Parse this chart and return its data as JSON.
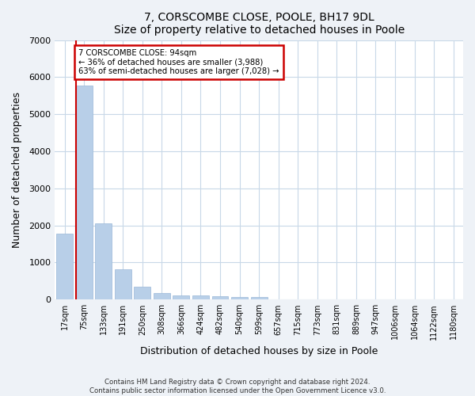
{
  "title": "7, CORSCOMBE CLOSE, POOLE, BH17 9DL",
  "subtitle": "Size of property relative to detached houses in Poole",
  "xlabel": "Distribution of detached houses by size in Poole",
  "ylabel": "Number of detached properties",
  "categories": [
    "17sqm",
    "75sqm",
    "133sqm",
    "191sqm",
    "250sqm",
    "308sqm",
    "366sqm",
    "424sqm",
    "482sqm",
    "540sqm",
    "599sqm",
    "657sqm",
    "715sqm",
    "773sqm",
    "831sqm",
    "889sqm",
    "947sqm",
    "1006sqm",
    "1064sqm",
    "1122sqm",
    "1180sqm"
  ],
  "bar_heights": [
    1780,
    5780,
    2060,
    820,
    340,
    185,
    120,
    110,
    100,
    80,
    70,
    0,
    0,
    0,
    0,
    0,
    0,
    0,
    0,
    0,
    0
  ],
  "bar_color": "#b8cfe8",
  "bar_edge_color": "#9ab8d8",
  "highlight_bar_index": 1,
  "highlight_color": "#cc0000",
  "annotation_text": "7 CORSCOMBE CLOSE: 94sqm\n← 36% of detached houses are smaller (3,988)\n63% of semi-detached houses are larger (7,028) →",
  "annotation_box_color": "#ffffff",
  "annotation_border_color": "#cc0000",
  "ylim": [
    0,
    7000
  ],
  "yticks": [
    0,
    1000,
    2000,
    3000,
    4000,
    5000,
    6000,
    7000
  ],
  "footer_line1": "Contains HM Land Registry data © Crown copyright and database right 2024.",
  "footer_line2": "Contains public sector information licensed under the Open Government Licence v3.0.",
  "bg_color": "#eef2f7",
  "plot_bg_color": "#ffffff",
  "grid_color": "#c8d8e8"
}
